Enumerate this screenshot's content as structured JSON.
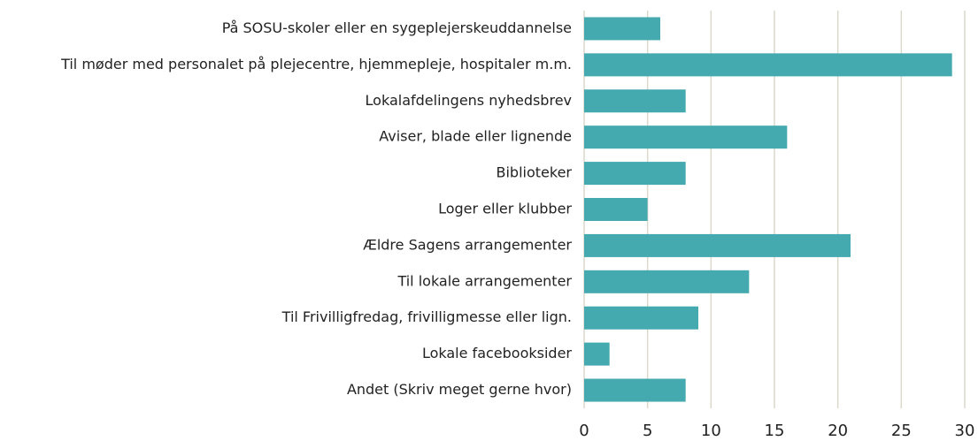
{
  "chart_data": {
    "type": "barh",
    "categories": [
      "På SOSU-skoler eller en sygeplejerskeuddannelse",
      "Til møder med personalet på plejecentre, hjemmepleje, hospitaler m.m.",
      "Lokalafdelingens nyhedsbrev",
      "Aviser, blade eller lignende",
      "Biblioteker",
      "Loger eller klubber",
      "Ældre Sagens arrangementer",
      "Til lokale arrangementer",
      "Til Frivilligfredag, frivilligmesse eller lign.",
      "Lokale facebooksider",
      "Andet (Skriv meget gerne hvor)"
    ],
    "values": [
      6,
      29,
      8,
      16,
      8,
      5,
      21,
      13,
      9,
      2,
      8
    ],
    "color": "#45a9b0",
    "xlim": [
      0,
      30
    ],
    "xticks": [
      0,
      5,
      10,
      15,
      20,
      25,
      30
    ],
    "grid": true
  }
}
